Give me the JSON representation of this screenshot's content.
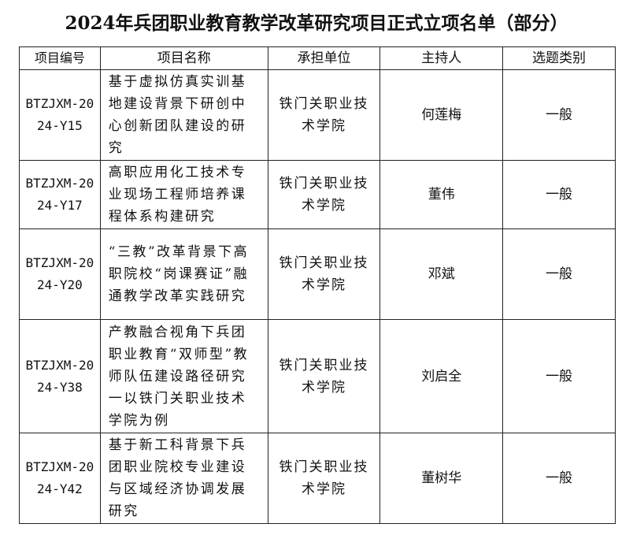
{
  "title": "2024年兵团职业教育教学改革研究项目正式立项名单（部分）",
  "headers": [
    "项目编号",
    "项目名称",
    "承担单位",
    "主持人",
    "选题类别"
  ],
  "rows": [
    {
      "id": "BTZJXM-2024-Y15",
      "name": "基于虚拟仿真实训基地建设背景下研创中心创新团队建设的研究",
      "unit": "铁门关职业技术学院",
      "host": "何莲梅",
      "category": "一般"
    },
    {
      "id": "BTZJXM-2024-Y17",
      "name": "高职应用化工技术专业现场工程师培养课程体系构建研究",
      "unit": "铁门关职业技术学院",
      "host": "董伟",
      "category": "一般"
    },
    {
      "id": "BTZJXM-2024-Y20",
      "name": "“三教”改革背景下高职院校“岗课赛证”融通教学改革实践研究",
      "unit": "铁门关职业技术学院",
      "host": "邓斌",
      "category": "一般"
    },
    {
      "id": "BTZJXM-2024-Y38",
      "name": "产教融合视角下兵团职业教育“双师型”教师队伍建设路径研究一以铁门关职业技术学院为例",
      "unit": "铁门关职业技术学院",
      "host": "刘启全",
      "category": "一般"
    },
    {
      "id": "BTZJXM-2024-Y42",
      "name": "基于新工科背景下兵团职业院校专业建设与区域经济协调发展研究",
      "unit": "铁门关职业技术学院",
      "host": "董树华",
      "category": "一般"
    }
  ]
}
